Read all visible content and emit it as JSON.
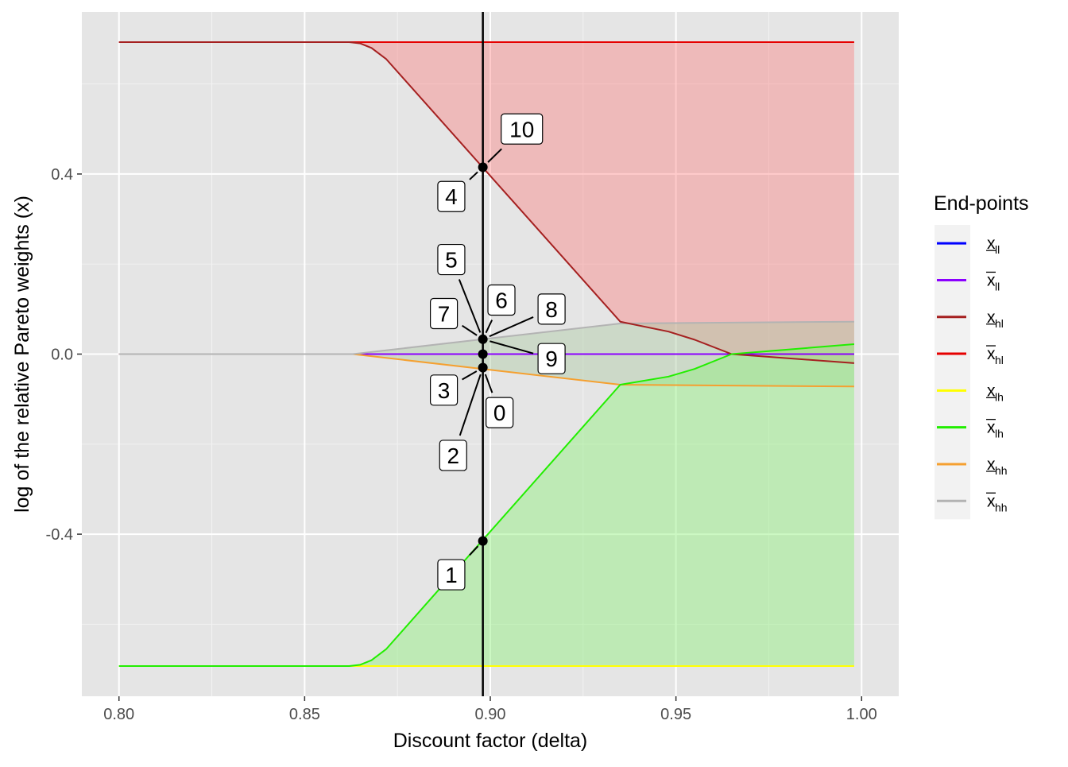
{
  "chart_data": {
    "type": "line",
    "title": "",
    "xlabel": "Discount factor (delta)",
    "ylabel": "log of the relative Pareto weights (x)",
    "xlim": [
      0.79,
      1.01
    ],
    "ylim": [
      -0.76,
      0.76
    ],
    "x_ticks": [
      0.8,
      0.85,
      0.9,
      0.95,
      1.0
    ],
    "x_tick_labels": [
      "0.80",
      "0.85",
      "0.90",
      "0.95",
      "1.00"
    ],
    "y_ticks": [
      -0.4,
      0.0,
      0.4
    ],
    "y_tick_labels": [
      "-0.4",
      "0.0",
      "0.4"
    ],
    "grid": true,
    "background": "#e5e5e5",
    "legend": {
      "title": "End-points",
      "position": "right",
      "entries": [
        {
          "key": "x_ll_lower",
          "base": "x",
          "sub": "ll",
          "bar": "under",
          "color": "#0000ff"
        },
        {
          "key": "x_ll_upper",
          "base": "x",
          "sub": "ll",
          "bar": "over",
          "color": "#8b00ff"
        },
        {
          "key": "x_hl_lower",
          "base": "x",
          "sub": "hl",
          "bar": "under",
          "color": "#a52020"
        },
        {
          "key": "x_hl_upper",
          "base": "x",
          "sub": "hl",
          "bar": "over",
          "color": "#e60000"
        },
        {
          "key": "x_lh_lower",
          "base": "x",
          "sub": "lh",
          "bar": "under",
          "color": "#ffff00"
        },
        {
          "key": "x_lh_upper",
          "base": "x",
          "sub": "lh",
          "bar": "over",
          "color": "#22ee00"
        },
        {
          "key": "x_hh_lower",
          "base": "x",
          "sub": "hh",
          "bar": "under",
          "color": "#f5a030"
        },
        {
          "key": "x_hh_upper",
          "base": "x",
          "sub": "hh",
          "bar": "over",
          "color": "#b3b3b3"
        }
      ]
    },
    "bands": [
      {
        "key": "hl",
        "color": "#ff6b6b",
        "opacity": 0.35,
        "lower": "x_hl_lower",
        "upper": "x_hl_upper"
      },
      {
        "key": "hh",
        "color": "#aec9a5",
        "opacity": 0.45,
        "lower": "x_hh_lower",
        "upper": "x_hh_upper"
      },
      {
        "key": "lh",
        "color": "#8ef07a",
        "opacity": 0.45,
        "lower": "x_lh_lower",
        "upper": "x_lh_upper"
      }
    ],
    "series": [
      {
        "key": "x_ll_lower",
        "color": "#0000ff",
        "points": [
          [
            0.8,
            0.0
          ],
          [
            0.998,
            0.0
          ]
        ]
      },
      {
        "key": "x_ll_upper",
        "color": "#8b00ff",
        "points": [
          [
            0.8,
            0.0
          ],
          [
            0.998,
            0.0
          ]
        ]
      },
      {
        "key": "x_hl_lower",
        "color": "#a52020",
        "points": [
          [
            0.8,
            0.693
          ],
          [
            0.862,
            0.693
          ],
          [
            0.865,
            0.69
          ],
          [
            0.868,
            0.68
          ],
          [
            0.872,
            0.655
          ],
          [
            0.935,
            0.072
          ],
          [
            0.948,
            0.05
          ],
          [
            0.955,
            0.032
          ],
          [
            0.965,
            0.0
          ],
          [
            0.998,
            -0.02
          ]
        ]
      },
      {
        "key": "x_hl_upper",
        "color": "#e60000",
        "points": [
          [
            0.8,
            0.693
          ],
          [
            0.998,
            0.693
          ]
        ]
      },
      {
        "key": "x_lh_lower",
        "color": "#ffff00",
        "points": [
          [
            0.8,
            -0.693
          ],
          [
            0.998,
            -0.693
          ]
        ]
      },
      {
        "key": "x_lh_upper",
        "color": "#22ee00",
        "points": [
          [
            0.8,
            -0.693
          ],
          [
            0.862,
            -0.693
          ],
          [
            0.865,
            -0.69
          ],
          [
            0.868,
            -0.68
          ],
          [
            0.872,
            -0.655
          ],
          [
            0.935,
            -0.068
          ],
          [
            0.948,
            -0.05
          ],
          [
            0.955,
            -0.033
          ],
          [
            0.965,
            0.0
          ],
          [
            0.998,
            0.022
          ]
        ]
      },
      {
        "key": "x_hh_lower",
        "color": "#f5a030",
        "points": [
          [
            0.8,
            0.0
          ],
          [
            0.863,
            0.0
          ],
          [
            0.935,
            -0.068
          ],
          [
            0.998,
            -0.072
          ]
        ]
      },
      {
        "key": "x_hh_upper",
        "color": "#b3b3b3",
        "points": [
          [
            0.8,
            0.0
          ],
          [
            0.863,
            0.0
          ],
          [
            0.935,
            0.068
          ],
          [
            0.998,
            0.072
          ]
        ]
      }
    ],
    "vline": {
      "x": 0.898,
      "color": "#000000"
    },
    "points": [
      {
        "x": 0.898,
        "y": 0.415
      },
      {
        "x": 0.898,
        "y": 0.033
      },
      {
        "x": 0.898,
        "y": 0.0
      },
      {
        "x": 0.898,
        "y": -0.03
      },
      {
        "x": 0.898,
        "y": -0.415
      }
    ],
    "annotations": [
      {
        "label": "10",
        "point_y": 0.415,
        "box_x": 0.9085,
        "box_y": 0.5
      },
      {
        "label": "4",
        "point_y": 0.415,
        "box_x": 0.8895,
        "box_y": 0.35
      },
      {
        "label": "5",
        "point_y": 0.033,
        "box_x": 0.8895,
        "box_y": 0.21
      },
      {
        "label": "6",
        "point_y": 0.033,
        "box_x": 0.903,
        "box_y": 0.12
      },
      {
        "label": "7",
        "point_y": 0.033,
        "box_x": 0.8875,
        "box_y": 0.09
      },
      {
        "label": "8",
        "point_y": 0.033,
        "box_x": 0.9165,
        "box_y": 0.1
      },
      {
        "label": "9",
        "point_y": 0.033,
        "box_x": 0.9165,
        "box_y": -0.01
      },
      {
        "label": "3",
        "point_y": -0.03,
        "box_x": 0.8875,
        "box_y": -0.08
      },
      {
        "label": "0",
        "point_y": -0.03,
        "box_x": 0.9025,
        "box_y": -0.13
      },
      {
        "label": "2",
        "point_y": -0.03,
        "box_x": 0.89,
        "box_y": -0.225
      },
      {
        "label": "1",
        "point_y": -0.415,
        "box_x": 0.8895,
        "box_y": -0.49
      }
    ]
  }
}
